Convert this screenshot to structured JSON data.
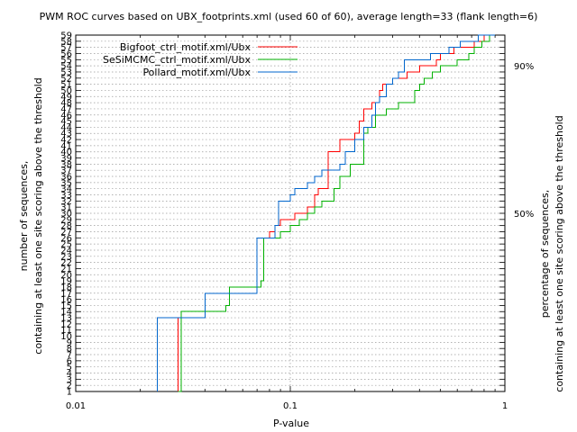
{
  "chart_data": {
    "type": "line",
    "title": "PWM ROC curves based on UBX_footprints.xml (used 60 of 60), average length=33 (flank length=6)",
    "xlabel": "P-value",
    "ylabel_line1": "number of sequences,",
    "ylabel_line2": "containing at least one site scoring above the threshold",
    "y2label_line1": "percentage of sequences,",
    "y2label_line2": "containing at least one site scoring above the threshold",
    "x_scale": "log",
    "xlim": [
      0.01,
      1
    ],
    "ylim": [
      1,
      59
    ],
    "x_ticks": [
      {
        "value": 0.01,
        "label": "0.01"
      },
      {
        "value": 0.1,
        "label": "0.1"
      },
      {
        "value": 1,
        "label": "1"
      }
    ],
    "y_ticks": [
      1,
      2,
      3,
      4,
      5,
      6,
      7,
      8,
      9,
      10,
      11,
      12,
      13,
      14,
      15,
      16,
      17,
      18,
      19,
      20,
      21,
      22,
      23,
      24,
      25,
      26,
      27,
      28,
      29,
      30,
      31,
      32,
      33,
      34,
      35,
      36,
      37,
      38,
      39,
      40,
      41,
      42,
      43,
      44,
      45,
      46,
      47,
      48,
      49,
      50,
      51,
      52,
      53,
      54,
      55,
      56,
      57,
      58,
      59
    ],
    "y2_ticks": [
      {
        "value": 30,
        "label": "50%"
      },
      {
        "value": 54,
        "label": "90%"
      }
    ],
    "grid": true,
    "legend_position": "top-right",
    "series": [
      {
        "name": "Bigfoot_ctrl_motif.xml/Ubx",
        "color": "#ff0000",
        "points": [
          [
            0.03,
            1
          ],
          [
            0.03,
            13
          ],
          [
            0.031,
            14
          ],
          [
            0.05,
            15
          ],
          [
            0.052,
            18
          ],
          [
            0.073,
            19
          ],
          [
            0.075,
            26
          ],
          [
            0.08,
            27
          ],
          [
            0.085,
            28
          ],
          [
            0.09,
            29
          ],
          [
            0.105,
            30
          ],
          [
            0.12,
            31
          ],
          [
            0.13,
            33
          ],
          [
            0.135,
            34
          ],
          [
            0.15,
            37
          ],
          [
            0.15,
            40
          ],
          [
            0.17,
            42
          ],
          [
            0.2,
            43
          ],
          [
            0.21,
            45
          ],
          [
            0.22,
            47
          ],
          [
            0.24,
            48
          ],
          [
            0.26,
            50
          ],
          [
            0.27,
            51
          ],
          [
            0.3,
            52
          ],
          [
            0.35,
            53
          ],
          [
            0.4,
            54
          ],
          [
            0.48,
            55
          ],
          [
            0.5,
            56
          ],
          [
            0.58,
            57
          ],
          [
            0.72,
            58
          ],
          [
            0.8,
            59
          ]
        ]
      },
      {
        "name": "SeSiMCMC_ctrl_motif.xml/Ubx",
        "color": "#00b000",
        "points": [
          [
            0.03,
            1
          ],
          [
            0.031,
            13
          ],
          [
            0.031,
            14
          ],
          [
            0.05,
            15
          ],
          [
            0.052,
            18
          ],
          [
            0.073,
            19
          ],
          [
            0.075,
            26
          ],
          [
            0.09,
            27
          ],
          [
            0.1,
            28
          ],
          [
            0.11,
            29
          ],
          [
            0.12,
            30
          ],
          [
            0.13,
            31
          ],
          [
            0.14,
            32
          ],
          [
            0.16,
            34
          ],
          [
            0.17,
            36
          ],
          [
            0.19,
            38
          ],
          [
            0.22,
            40
          ],
          [
            0.22,
            42
          ],
          [
            0.22,
            43
          ],
          [
            0.23,
            44
          ],
          [
            0.25,
            46
          ],
          [
            0.28,
            47
          ],
          [
            0.32,
            48
          ],
          [
            0.38,
            50
          ],
          [
            0.4,
            51
          ],
          [
            0.42,
            52
          ],
          [
            0.46,
            53
          ],
          [
            0.5,
            54
          ],
          [
            0.6,
            55
          ],
          [
            0.68,
            56
          ],
          [
            0.72,
            57
          ],
          [
            0.78,
            58
          ],
          [
            0.85,
            59
          ]
        ]
      },
      {
        "name": "Pollard_motif.xml/Ubx",
        "color": "#0066cc",
        "points": [
          [
            0.024,
            1
          ],
          [
            0.024,
            13
          ],
          [
            0.04,
            14
          ],
          [
            0.04,
            17
          ],
          [
            0.07,
            18
          ],
          [
            0.07,
            26
          ],
          [
            0.085,
            28
          ],
          [
            0.088,
            32
          ],
          [
            0.1,
            33
          ],
          [
            0.105,
            34
          ],
          [
            0.12,
            35
          ],
          [
            0.13,
            36
          ],
          [
            0.14,
            37
          ],
          [
            0.17,
            38
          ],
          [
            0.18,
            40
          ],
          [
            0.2,
            42
          ],
          [
            0.22,
            44
          ],
          [
            0.24,
            46
          ],
          [
            0.25,
            48
          ],
          [
            0.26,
            49
          ],
          [
            0.28,
            51
          ],
          [
            0.3,
            52
          ],
          [
            0.32,
            53
          ],
          [
            0.34,
            55
          ],
          [
            0.45,
            56
          ],
          [
            0.55,
            57
          ],
          [
            0.62,
            58
          ],
          [
            0.75,
            59
          ],
          [
            0.9,
            59
          ]
        ]
      }
    ]
  }
}
